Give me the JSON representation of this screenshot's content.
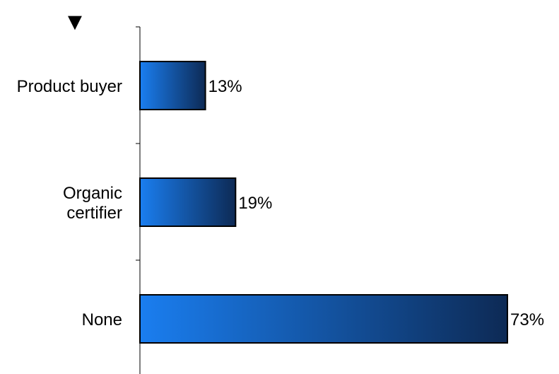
{
  "marker": {
    "glyph": "▼",
    "icon": "down-triangle-icon"
  },
  "chart_data": {
    "type": "bar",
    "orientation": "horizontal",
    "categories": [
      [
        "Product buyer"
      ],
      [
        "Organic",
        "certifier"
      ],
      [
        "None"
      ]
    ],
    "values": [
      13,
      19,
      73
    ],
    "data_labels": [
      "13%",
      "19%",
      "73%"
    ],
    "value_unit": "%",
    "xlim": [
      0,
      73
    ],
    "title": "",
    "xlabel": "",
    "ylabel": "",
    "grid": false,
    "legend": "none",
    "colors": {
      "bar_light": "#1a7ef0",
      "bar_dark": "#0d2a55",
      "bar_edge": "#000000",
      "axis": "#000000"
    }
  }
}
